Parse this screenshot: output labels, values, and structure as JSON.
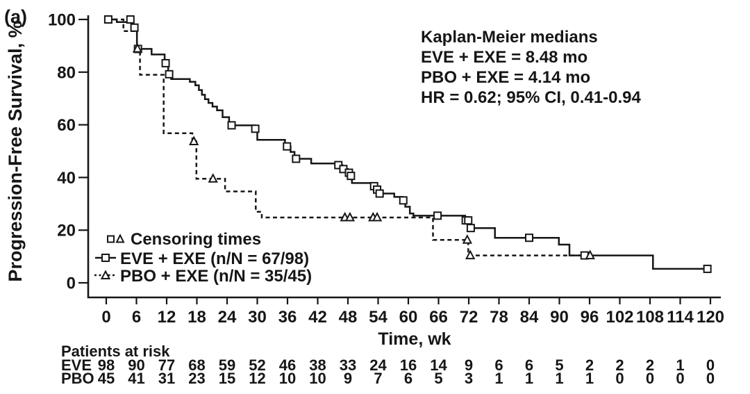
{
  "figure": {
    "panel_label": "(a)",
    "background_color": "#ffffff",
    "ink_color": "#161616"
  },
  "axes": {
    "ylabel": "Progression-Free Survival, %",
    "xlabel": "Time, wk",
    "yticks": [
      100,
      80,
      60,
      40,
      20,
      0
    ],
    "xticks": [
      0,
      6,
      12,
      18,
      24,
      30,
      36,
      42,
      48,
      54,
      60,
      66,
      72,
      78,
      84,
      90,
      96,
      102,
      108,
      114,
      120
    ]
  },
  "annotation": {
    "lines": [
      "Kaplan-Meier medians",
      "EVE + EXE = 8.48 mo",
      "PBO + EXE = 4.14 mo",
      "HR = 0.62; 95% CI, 0.41-0.94"
    ]
  },
  "legend": {
    "items": [
      {
        "label": "Censoring times",
        "markers": [
          "open-square",
          "open-triangle"
        ]
      },
      {
        "label": "EVE + EXE (n/N = 67/98)",
        "line": "solid",
        "marker": "open-square"
      },
      {
        "label": "PBO + EXE (n/N = 35/45)",
        "line": "dashed",
        "marker": "open-triangle"
      }
    ]
  },
  "risk_table": {
    "title": "Patients at risk",
    "time_points": [
      0,
      6,
      12,
      18,
      24,
      30,
      36,
      42,
      48,
      54,
      60,
      66,
      72,
      78,
      84,
      90,
      96,
      102,
      108,
      114,
      120
    ],
    "rows": [
      {
        "label": "EVE",
        "values": [
          98,
          90,
          77,
          68,
          59,
          52,
          46,
          38,
          33,
          24,
          16,
          14,
          9,
          6,
          6,
          5,
          2,
          2,
          2,
          1,
          0
        ]
      },
      {
        "label": "PBO",
        "values": [
          45,
          41,
          31,
          23,
          15,
          12,
          10,
          10,
          9,
          7,
          6,
          5,
          3,
          1,
          1,
          1,
          1,
          0,
          0,
          0,
          0
        ]
      }
    ]
  },
  "chart_data": {
    "type": "line",
    "subtype": "kaplan-meier-step",
    "title": "",
    "xlabel": "Time, wk",
    "ylabel": "Progression-Free Survival, %",
    "xlim": [
      0,
      120
    ],
    "ylim": [
      0,
      100
    ],
    "grid": false,
    "legend_position": "lower-left-inside",
    "series": [
      {
        "name": "EVE + EXE",
        "n_events_over_N": "67/98",
        "median_mo": 8.48,
        "style": "solid",
        "marker": "square",
        "end_time": 119.6,
        "steps": [
          [
            0,
            100
          ],
          [
            2.1,
            99.0
          ],
          [
            5.3,
            96.9
          ],
          [
            6.1,
            88.8
          ],
          [
            9.0,
            86.7
          ],
          [
            11.6,
            83.4
          ],
          [
            12.3,
            79.2
          ],
          [
            12.9,
            77.4
          ],
          [
            16.6,
            76.3
          ],
          [
            17.7,
            75.0
          ],
          [
            18.4,
            73.2
          ],
          [
            19.0,
            71.4
          ],
          [
            19.6,
            69.7
          ],
          [
            20.3,
            68.3
          ],
          [
            21.1,
            66.9
          ],
          [
            22.0,
            65.5
          ],
          [
            23.1,
            62.9
          ],
          [
            24.4,
            59.8
          ],
          [
            29.5,
            58.5
          ],
          [
            30.0,
            54.3
          ],
          [
            35.5,
            51.8
          ],
          [
            36.6,
            49.7
          ],
          [
            37.4,
            47.1
          ],
          [
            40.7,
            45.3
          ],
          [
            45.9,
            44.7
          ],
          [
            46.9,
            43.2
          ],
          [
            48.0,
            41.8
          ],
          [
            48.4,
            40.6
          ],
          [
            48.8,
            37.9
          ],
          [
            52.9,
            36.7
          ],
          [
            53.6,
            35.4
          ],
          [
            54.2,
            33.9
          ],
          [
            57.2,
            32.6
          ],
          [
            58.9,
            31.3
          ],
          [
            59.4,
            28.9
          ],
          [
            60.3,
            26.3
          ],
          [
            61.0,
            25.5
          ],
          [
            71.3,
            23.7
          ],
          [
            72.2,
            20.8
          ],
          [
            77.2,
            17.1
          ],
          [
            89.9,
            14.5
          ],
          [
            92.0,
            10.4
          ],
          [
            108.6,
            5.3
          ]
        ],
        "censors": [
          [
            0.4,
            100
          ],
          [
            4.8,
            100
          ],
          [
            5.6,
            96.9
          ],
          [
            6.3,
            88.8
          ],
          [
            11.8,
            83.4
          ],
          [
            12.5,
            79.2
          ],
          [
            24.9,
            59.8
          ],
          [
            29.6,
            58.5
          ],
          [
            35.9,
            51.8
          ],
          [
            37.7,
            47.1
          ],
          [
            46.1,
            44.7
          ],
          [
            47.1,
            43.2
          ],
          [
            48.2,
            41.8
          ],
          [
            48.6,
            40.6
          ],
          [
            53.2,
            36.7
          ],
          [
            53.8,
            35.4
          ],
          [
            54.3,
            33.9
          ],
          [
            59.0,
            31.3
          ],
          [
            65.8,
            25.5
          ],
          [
            71.4,
            23.7
          ],
          [
            71.9,
            23.7
          ],
          [
            72.4,
            20.8
          ],
          [
            84.0,
            17.1
          ],
          [
            95.0,
            10.4
          ],
          [
            119.4,
            5.3
          ]
        ]
      },
      {
        "name": "PBO + EXE",
        "n_events_over_N": "35/45",
        "median_mo": 4.14,
        "style": "dashed",
        "marker": "triangle",
        "end_time": 96.2,
        "steps": [
          [
            0,
            100
          ],
          [
            3.4,
            95.6
          ],
          [
            6.1,
            88.9
          ],
          [
            6.7,
            79.0
          ],
          [
            11.4,
            56.8
          ],
          [
            17.1,
            53.7
          ],
          [
            17.9,
            39.5
          ],
          [
            23.6,
            34.7
          ],
          [
            29.7,
            27.0
          ],
          [
            30.9,
            24.8
          ],
          [
            64.9,
            16.3
          ],
          [
            71.9,
            10.4
          ]
        ],
        "censors": [
          [
            6.2,
            88.9
          ],
          [
            17.4,
            53.7
          ],
          [
            21.2,
            39.5
          ],
          [
            47.4,
            24.8
          ],
          [
            48.4,
            24.8
          ],
          [
            53.0,
            24.8
          ],
          [
            53.8,
            24.8
          ],
          [
            71.7,
            16.3
          ],
          [
            72.3,
            10.4
          ],
          [
            96.1,
            10.4
          ]
        ]
      }
    ],
    "hazard_ratio": "HR = 0.62; 95% CI, 0.41-0.94"
  }
}
